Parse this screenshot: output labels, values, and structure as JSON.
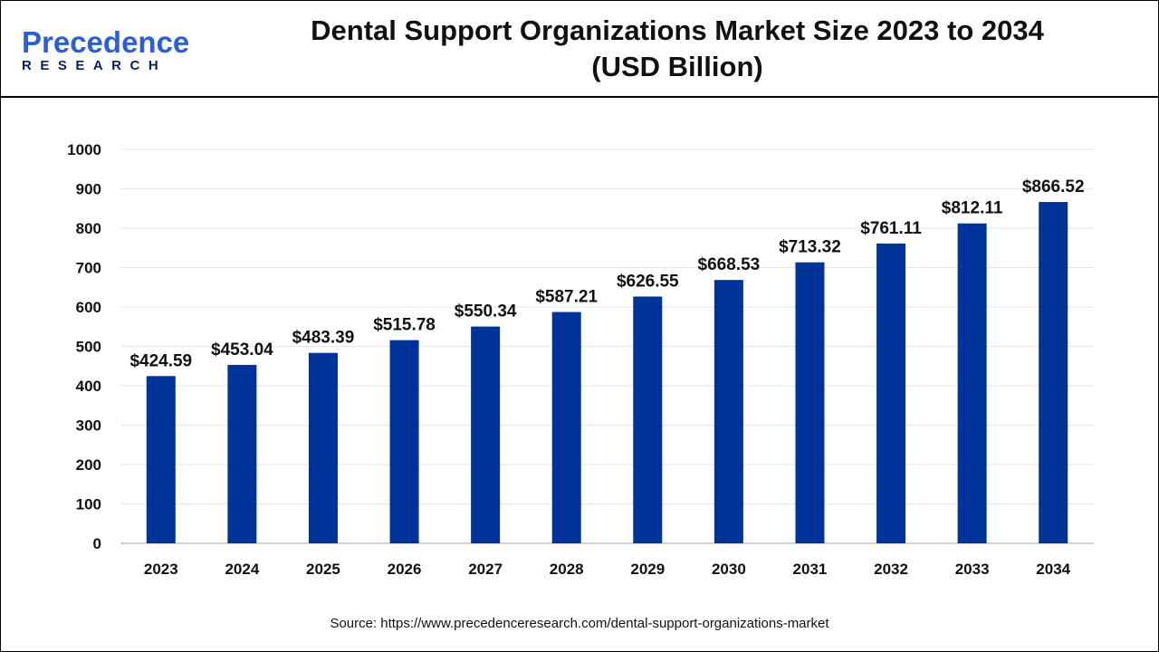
{
  "header": {
    "logo_main": "Precedence",
    "logo_sub": "RESEARCH",
    "title_line1": "Dental Support Organizations Market Size 2023 to 2034",
    "title_line2": "(USD Billion)"
  },
  "source": "Source: https://www.precedenceresearch.com/dental-support-organizations-market",
  "chart_data": {
    "type": "bar",
    "title": "Dental Support Organizations Market Size 2023 to 2034 (USD Billion)",
    "categories": [
      "2023",
      "2024",
      "2025",
      "2026",
      "2027",
      "2028",
      "2029",
      "2030",
      "2031",
      "2032",
      "2033",
      "2034"
    ],
    "values": [
      424.59,
      453.04,
      483.39,
      515.78,
      550.34,
      587.21,
      626.55,
      668.53,
      713.32,
      761.11,
      812.11,
      866.52
    ],
    "data_labels": [
      "$424.59",
      "$453.04",
      "$483.39",
      "$515.78",
      "$550.34",
      "$587.21",
      "$626.55",
      "$668.53",
      "$713.32",
      "$761.11",
      "$812.11",
      "$866.52"
    ],
    "yticks": [
      0,
      100,
      200,
      300,
      400,
      500,
      600,
      700,
      800,
      900,
      1000
    ],
    "ylim": [
      0,
      1000
    ],
    "xlabel": "",
    "ylabel": "",
    "grid": true,
    "bar_color": "#003399"
  }
}
